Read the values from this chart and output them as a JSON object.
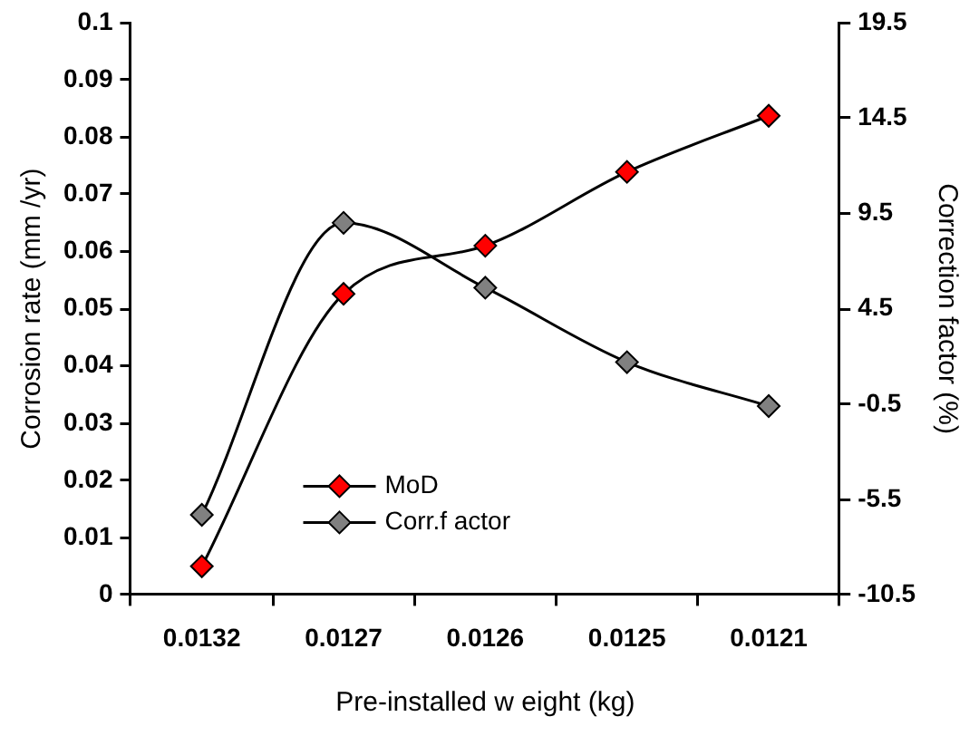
{
  "chart_data": {
    "type": "line",
    "xlabel": "Pre-installed w eight (kg)",
    "ylabel": "Corrosion rate (mm /yr)",
    "y2label": "Correction factor (%)",
    "categories": [
      "0.0132",
      "0.0127",
      "0.0126",
      "0.0125",
      "0.0121"
    ],
    "series": [
      {
        "name": "MoD",
        "color": "#ff0000",
        "values": [
          0.005,
          0.0526,
          0.061,
          0.0739,
          0.0837
        ]
      },
      {
        "name": "Corr.f actor",
        "color": "#808080",
        "axis": "y2",
        "values": [
          -6.3,
          9.0,
          5.6,
          1.7,
          -0.6
        ]
      }
    ],
    "ylim": [
      0,
      0.1
    ],
    "yticks": [
      0,
      0.01,
      0.02,
      0.03,
      0.04,
      0.05,
      0.06,
      0.07,
      0.08,
      0.09,
      0.1
    ],
    "y2lim": [
      -10.5,
      19.5
    ],
    "y2ticks": [
      -10.5,
      -5.5,
      -0.5,
      4.5,
      9.5,
      14.5,
      19.5
    ],
    "grid": false,
    "legend": "bottom left",
    "marker": "diamond",
    "line_style": "solid"
  }
}
